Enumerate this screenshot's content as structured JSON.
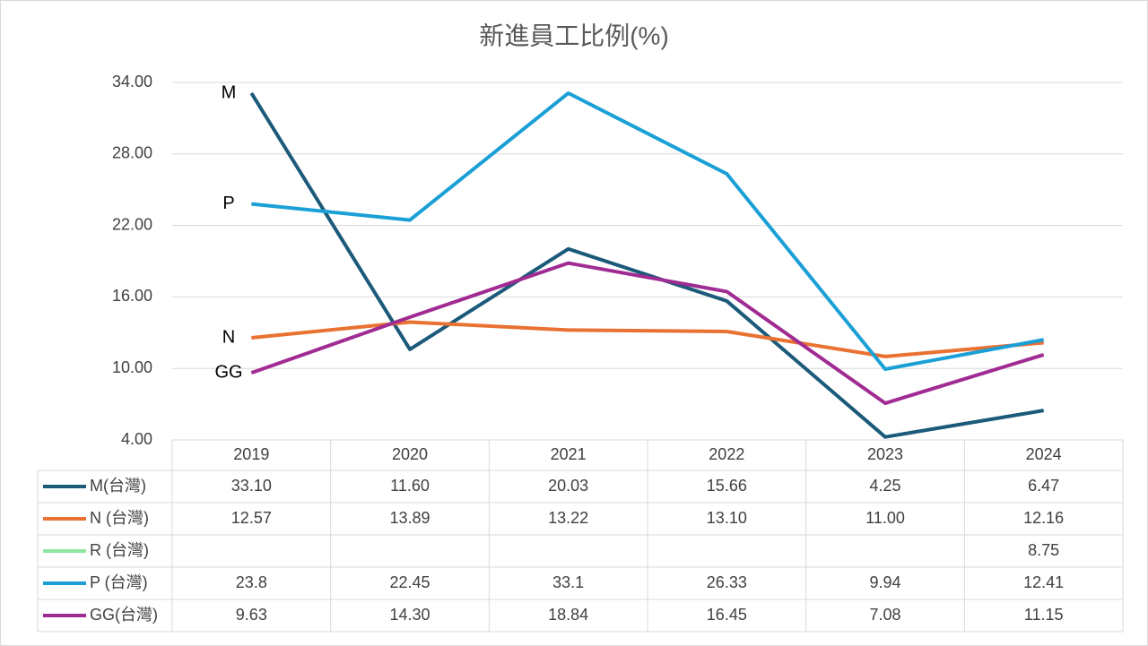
{
  "chart_data": {
    "type": "line",
    "title": "新進員工比例(%)",
    "categories": [
      "2019",
      "2020",
      "2021",
      "2022",
      "2023",
      "2024"
    ],
    "ylim": [
      4,
      34
    ],
    "yticks": [
      {
        "value": 4,
        "label": "4.00"
      },
      {
        "value": 10,
        "label": "10.00"
      },
      {
        "value": 16,
        "label": "16.00"
      },
      {
        "value": 22,
        "label": "22.00"
      },
      {
        "value": 28,
        "label": "28.00"
      },
      {
        "value": 34,
        "label": "34.00"
      }
    ],
    "grid": true,
    "series": [
      {
        "name": "M(台灣)",
        "label": "M",
        "color": "#1c5a7a",
        "values": [
          33.1,
          11.6,
          20.03,
          15.66,
          4.25,
          6.47
        ],
        "value_labels": [
          "33.10",
          "11.60",
          "20.03",
          "15.66",
          "4.25",
          "6.47"
        ]
      },
      {
        "name": "N (台灣)",
        "label": "N",
        "color": "#e97132",
        "values": [
          12.57,
          13.89,
          13.22,
          13.1,
          11,
          12.16
        ],
        "value_labels": [
          "12.57",
          "13.89",
          "13.22",
          "13.10",
          "11.00",
          "12.16"
        ]
      },
      {
        "name": "R (台灣)",
        "color": "#8ee6a0",
        "values": [
          null,
          null,
          null,
          null,
          null,
          8.75
        ]
      },
      {
        "name": "P (台灣)",
        "label": "P",
        "color": "#1aa0d6",
        "values": [
          23.8,
          22.45,
          33.1,
          26.33,
          9.94,
          12.41
        ]
      },
      {
        "name": "GG(台灣)",
        "label": "GG",
        "color": "#a02b93",
        "values": [
          9.63,
          14.3,
          18.84,
          16.45,
          7.08,
          11.15
        ],
        "value_labels": [
          "9.63",
          "14.30",
          "18.84",
          "16.45",
          "7.08",
          "11.15"
        ]
      }
    ]
  }
}
